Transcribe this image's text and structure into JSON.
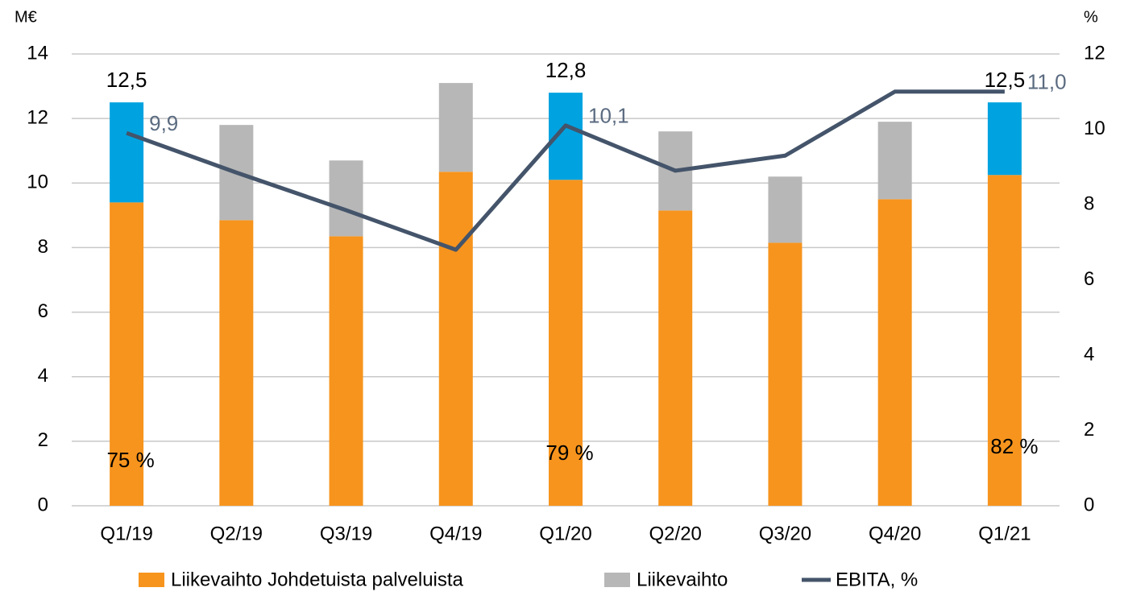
{
  "chart_data": {
    "type": "bar",
    "stacked": true,
    "y_unit": "M€",
    "y2_unit": "%",
    "categories": [
      "Q1/19",
      "Q2/19",
      "Q3/19",
      "Q4/19",
      "Q1/20",
      "Q2/20",
      "Q3/20",
      "Q4/20",
      "Q1/21"
    ],
    "series": [
      {
        "name": "Liikevaihto Johdetuista palveluista",
        "color": "#f7941d",
        "values": [
          9.4,
          8.85,
          8.35,
          10.35,
          10.1,
          9.15,
          8.15,
          9.5,
          10.25
        ]
      },
      {
        "name": "Liikevaihto",
        "color": "#b7b7b7",
        "colors": [
          "#00a3e0",
          "#b7b7b7",
          "#b7b7b7",
          "#b7b7b7",
          "#00a3e0",
          "#b7b7b7",
          "#b7b7b7",
          "#b7b7b7",
          "#00a3e0"
        ],
        "values": [
          3.1,
          2.95,
          2.35,
          2.75,
          2.7,
          2.45,
          2.05,
          2.4,
          2.25
        ]
      },
      {
        "name": "EBITA, %",
        "color": "#44546a",
        "type": "line",
        "axis": "y2",
        "values": [
          9.9,
          8.85,
          7.85,
          6.8,
          10.1,
          8.9,
          9.3,
          11.0,
          11.0
        ],
        "value_labels": [
          "9,9",
          null,
          null,
          null,
          "10,1",
          null,
          null,
          null,
          "11,0"
        ]
      }
    ],
    "total_labels": {
      "values": [
        12.5,
        null,
        null,
        null,
        12.8,
        null,
        null,
        null,
        12.5
      ],
      "value_labels": [
        "12,5",
        null,
        null,
        null,
        "12,8",
        null,
        null,
        null,
        "12,5"
      ]
    },
    "share_labels": {
      "values": [
        75,
        null,
        null,
        null,
        79,
        null,
        null,
        null,
        82
      ],
      "value_labels": [
        "75 %",
        null,
        null,
        null,
        "79 %",
        null,
        null,
        null,
        "82 %"
      ]
    },
    "ylim": [
      0,
      14
    ],
    "yticks": [
      0,
      2,
      4,
      6,
      8,
      10,
      12,
      14
    ],
    "y2lim": [
      0,
      12
    ],
    "y2ticks": [
      0,
      2,
      4,
      6,
      8,
      10,
      12
    ],
    "grid": true,
    "legend": "bottom"
  }
}
